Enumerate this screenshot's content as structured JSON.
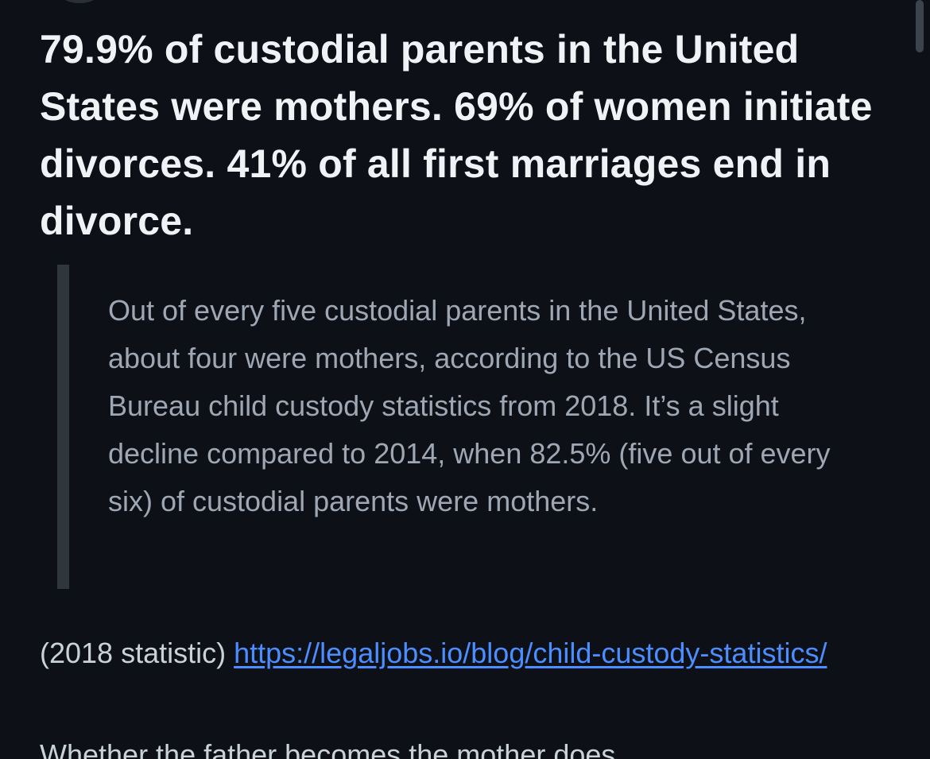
{
  "post": {
    "headline": "79.9% of custodial parents in the United States were mothers. 69% of women initiate divorces. 41% of all first marriages end in divorce.",
    "quote": "Out of every five custodial parents in the United States, about four were mothers, according to the US Census Bureau child custody statistics from 2018. It’s a slight decline compared to 2014, when 82.5% (five out of every six) of custodial parents were mothers.",
    "source_prefix": "(2018 statistic) ",
    "source_link": "https://legaljobs.io/blog/child-custody-statistics/",
    "cutoff_text": "Whether the father becomes the mother does"
  },
  "colors": {
    "background": "#0d1117",
    "headline": "#f0f3f6",
    "quote_text": "#9ea7b3",
    "quote_bar": "#30363d",
    "link": "#4c8dff"
  }
}
